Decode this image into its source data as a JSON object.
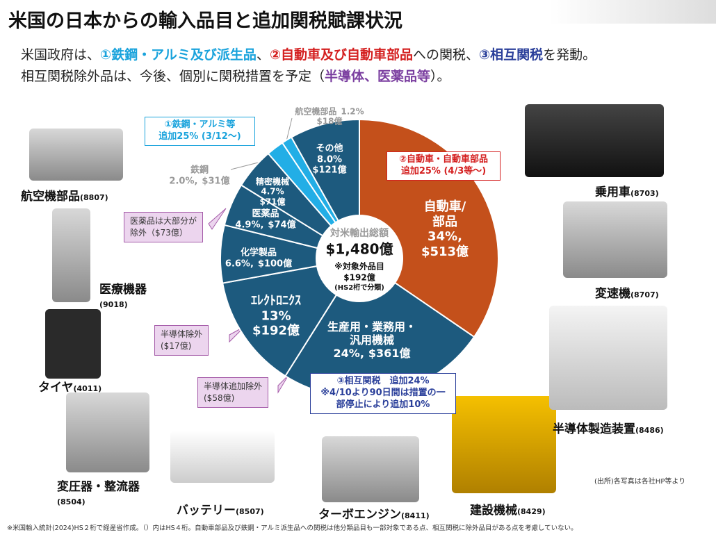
{
  "header": {
    "title": "米国の日本からの輸入品目と追加関税賦課状況",
    "intro": [
      [
        "米国政府は、",
        "①鉄鋼・アルミ及び派生品",
        "、",
        "②自動車及び自動車部品",
        "への関税、",
        "③相互関税",
        "を発動。"
      ],
      [
        "相互関税除外品は、今後、個別に関税措置を予定（",
        "半導体、医薬品等",
        "）。"
      ]
    ]
  },
  "chart_data": {
    "type": "pie",
    "categories": [
      "自動車/\n部品",
      "生産用・業務用・\n汎用機械",
      "ｴﾚｸﾄﾛﾆｸｽ",
      "化学製品",
      "医薬品",
      "精密機械",
      "鉄鋼",
      "航空機部品",
      "その他"
    ],
    "values": [
      34,
      24,
      13,
      6.6,
      4.9,
      4.7,
      2.0,
      1.2,
      8.0
    ],
    "value_labels": [
      "34%,",
      "24%,",
      "13%",
      "6.6%,",
      "4.9%,",
      "4.7%",
      "2.0%,",
      "1.2%",
      "8.0%"
    ],
    "amount_labels": [
      "$513億",
      "$361億",
      "$192億",
      "$100億",
      "$74億",
      "$71億",
      "$31億",
      "$18億",
      "$121億"
    ],
    "colors": [
      "#c4501b",
      "#1d5a7e",
      "#1d5a7e",
      "#1d5a7e",
      "#1d5a7e",
      "#1d5a7e",
      "#22aee6",
      "#22aee6",
      "#1d5a7e"
    ],
    "center": [
      "対米輸出総額",
      "$1,480億",
      "※対象外品目",
      "$192億",
      "(HS2桁で分類)"
    ]
  },
  "callouts": [
    "①鉄鋼・アルミ等\n追加25% (3/12〜)",
    "②自動車・自動車部品\n追加25% (4/3等〜)",
    "③相互関税　追加24%\n※4/10より90日間は措置の一\n部停止により追加10%"
  ],
  "exclusions": [
    "医薬品は大部分が\n除外（$73億）",
    "半導体除外\n($17億)",
    "半導体追加除外\n($58億)"
  ],
  "products": [
    [
      "航空機部品",
      "(8807)"
    ],
    [
      "医療機器",
      "(9018)"
    ],
    [
      "タイヤ",
      "(4011)"
    ],
    [
      "変圧器・整流器",
      "(8504)"
    ],
    [
      "バッテリー",
      "(8507)"
    ],
    [
      "ターボエンジン",
      "(8411)"
    ],
    [
      "建設機械",
      "(8429)"
    ],
    [
      "半導体製造装置",
      "(8486)"
    ],
    [
      "変速機",
      "(8707)"
    ],
    [
      "乗用車",
      "(8703)"
    ]
  ],
  "source": "(出所)各写真は各社HP等より",
  "footnote": "※米国輸入統計(2024)HS２桁で経産省作成。（）内はHS４桁。自動車部品及び鉄鋼・アルミ派生品への関税は他分類品目も一部対象である点、相互関税に除外品目がある点を考慮していない。"
}
